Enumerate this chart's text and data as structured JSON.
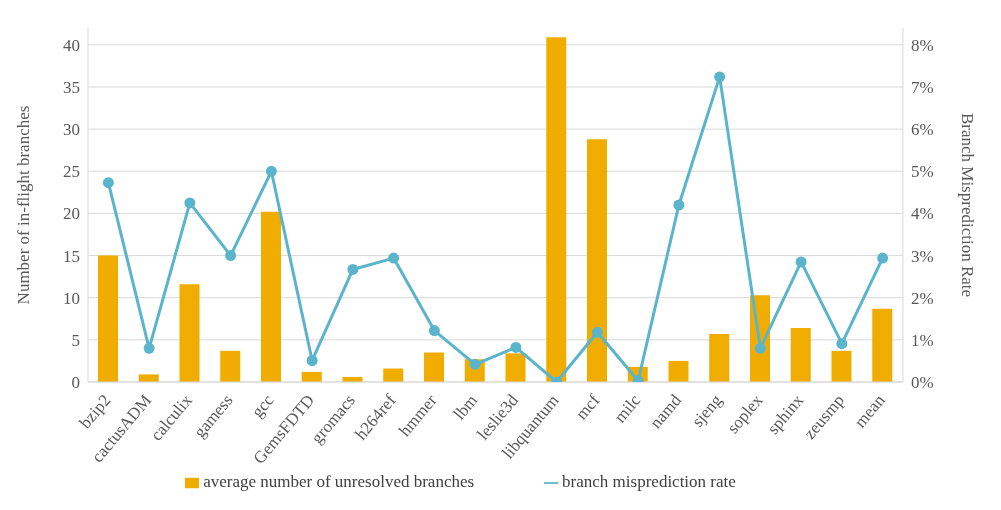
{
  "chart_data": {
    "type": "bar",
    "categories": [
      "bzip2",
      "cactusADM",
      "calculix",
      "gamess",
      "gcc",
      "GemsFDTD",
      "gromacs",
      "h264ref",
      "hmmer",
      "lbm",
      "leslie3d",
      "libquantum",
      "mcf",
      "milc",
      "namd",
      "sjeng",
      "soplex",
      "sphinx",
      "zeusmp",
      "mean"
    ],
    "ylabel": "Number of in-flight branches",
    "y2label": "Branch Misprediction Rate",
    "series": [
      {
        "name": "average number of unresolved branches",
        "color": "#f0ad00",
        "values": [
          15.0,
          0.9,
          11.6,
          3.7,
          20.2,
          1.2,
          0.6,
          1.6,
          3.5,
          2.7,
          3.4,
          40.9,
          28.8,
          1.8,
          2.5,
          5.7,
          10.3,
          6.4,
          3.7,
          8.7
        ]
      },
      {
        "name": "branch misprediction rate",
        "type": "line",
        "axis": "y2",
        "color": "#5ab4cc",
        "values": [
          4.73,
          0.8,
          4.25,
          3.0,
          5.0,
          0.51,
          2.67,
          2.94,
          1.22,
          0.42,
          0.82,
          0,
          1.18,
          0.03,
          4.2,
          7.24,
          0.8,
          2.85,
          0.91,
          2.94
        ]
      }
    ],
    "ylim": [
      0,
      42
    ],
    "yticks": [
      0,
      5,
      10,
      15,
      20,
      25,
      30,
      35,
      40
    ],
    "y2lim": [
      0,
      8.4
    ],
    "y2ticks": [
      {
        "value": 0,
        "label": "0%"
      },
      {
        "value": 1,
        "label": "1%"
      },
      {
        "value": 2,
        "label": "2%"
      },
      {
        "value": 3,
        "label": "3%"
      },
      {
        "value": 4,
        "label": "4%"
      },
      {
        "value": 5,
        "label": "5%"
      },
      {
        "value": 6,
        "label": "6%"
      },
      {
        "value": 7,
        "label": "7%"
      },
      {
        "value": 8,
        "label": "8%"
      }
    ],
    "grid": "y",
    "legend": "bottom",
    "marker": "circle",
    "line_style": "solid"
  }
}
